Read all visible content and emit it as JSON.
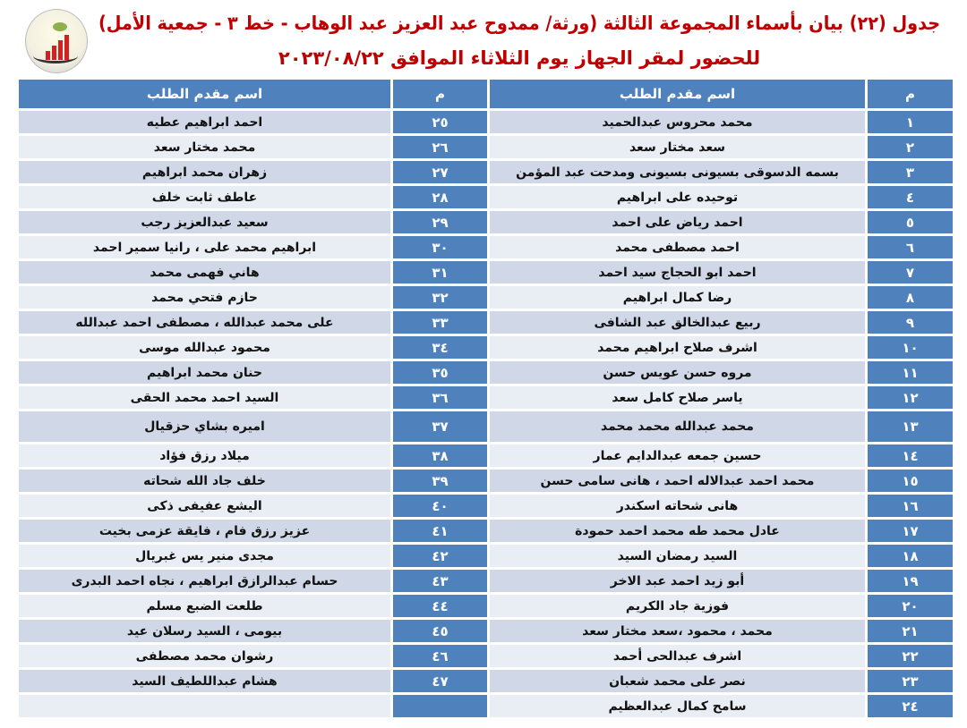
{
  "header": {
    "title_line1": "جدول (٢٢) بيان بأسماء المجموعة الثالثة (ورثة/ ممدوح عبد العزيز عبد الوهاب - خط ٣ - جمعية الأمل)",
    "title_line2": "للحضور لمقر الجهاز يوم الثلاثاء الموافق ٢٠٢٣/٠٨/٢٢"
  },
  "table": {
    "columns": [
      "م",
      "اسم مقدم الطلب",
      "م",
      "اسم مقدم الطلب"
    ],
    "rows": [
      {
        "n1": "١",
        "name1": "محمد محروس عبدالحميد",
        "n2": "٢٥",
        "name2": "احمد ابراهيم عطيه"
      },
      {
        "n1": "٢",
        "name1": "سعد مختار سعد",
        "n2": "٢٦",
        "name2": "محمد مختار سعد"
      },
      {
        "n1": "٣",
        "name1": "بسمه الدسوقى بسيونى بسيونى ومدحت عبد المؤمن",
        "n2": "٢٧",
        "name2": "زهران محمد ابراهيم"
      },
      {
        "n1": "٤",
        "name1": "توحيده على ابراهيم",
        "n2": "٢٨",
        "name2": "عاطف ثابت خلف"
      },
      {
        "n1": "٥",
        "name1": "احمد رياض على احمد",
        "n2": "٢٩",
        "name2": "سعيد عبدالعزيز رجب"
      },
      {
        "n1": "٦",
        "name1": "احمد مصطفى محمد",
        "n2": "٣٠",
        "name2": "ابراهيم محمد على ، رانيا سمير احمد"
      },
      {
        "n1": "٧",
        "name1": "احمد ابو الحجاج سيد احمد",
        "n2": "٣١",
        "name2": "هاني فهمى محمد"
      },
      {
        "n1": "٨",
        "name1": "رضا كمال ابراهيم",
        "n2": "٣٢",
        "name2": "حازم فتحي محمد"
      },
      {
        "n1": "٩",
        "name1": "ربيع عبدالخالق عبد الشافى",
        "n2": "٣٣",
        "name2": "على محمد عبدالله ، مصطفى احمد عبدالله"
      },
      {
        "n1": "١٠",
        "name1": "اشرف صلاح ابراهيم محمد",
        "n2": "٣٤",
        "name2": "محمود عبدالله موسى"
      },
      {
        "n1": "١١",
        "name1": "مروه حسن عويس حسن",
        "n2": "٣٥",
        "name2": "حنان محمد ابراهيم"
      },
      {
        "n1": "١٢",
        "name1": "ياسر صلاح كامل سعد",
        "n2": "٣٦",
        "name2": "السيد احمد محمد الحقى"
      },
      {
        "n1": "١٣",
        "name1": "محمد عبدالله محمد محمد",
        "n2": "٣٧",
        "name2": "اميره بشاي حزقيال"
      },
      {
        "n1": "١٤",
        "name1": "حسين جمعه عبدالدايم عمار",
        "n2": "٣٨",
        "name2": "ميلاد رزق فؤاد"
      },
      {
        "n1": "١٥",
        "name1": "محمد احمد عبدالاله احمد ، هانى سامى حسن",
        "n2": "٣٩",
        "name2": "خلف جاد الله شحاته"
      },
      {
        "n1": "١٦",
        "name1": "هانى شحاته اسكندر",
        "n2": "٤٠",
        "name2": "اليشع عفيفى ذكى"
      },
      {
        "n1": "١٧",
        "name1": "عادل محمد طه محمد احمد حمودة",
        "n2": "٤١",
        "name2": "عزيز رزق فام ، فايقة عزمى بخيت"
      },
      {
        "n1": "١٨",
        "name1": "السيد رمضان السيد",
        "n2": "٤٢",
        "name2": "مجدى منير يس غبريال"
      },
      {
        "n1": "١٩",
        "name1": "أبو زيد احمد عبد الاخر",
        "n2": "٤٣",
        "name2": "حسام عبدالرازق ابراهيم ، نجاه احمد البدرى"
      },
      {
        "n1": "٢٠",
        "name1": "فوزية جاد الكريم",
        "n2": "٤٤",
        "name2": "طلعت الضبع مسلم"
      },
      {
        "n1": "٢١",
        "name1": "محمد ، محمود ،سعد مختار سعد",
        "n2": "٤٥",
        "name2": "بيومى ، السيد رسلان عيد"
      },
      {
        "n1": "٢٢",
        "name1": "اشرف عبدالحى أحمد",
        "n2": "٤٦",
        "name2": "رشوان محمد مصطفى"
      },
      {
        "n1": "٢٣",
        "name1": "نصر على محمد شعبان",
        "n2": "٤٧",
        "name2": "هشام عبداللطيف السيد"
      },
      {
        "n1": "٢٤",
        "name1": "سامح كمال عبدالعظيم",
        "n2": "",
        "name2": ""
      }
    ]
  },
  "colors": {
    "title": "#c00000",
    "header_bg": "#4f81bd",
    "row_odd": "#d0d8e8",
    "row_even": "#e9edf4"
  }
}
